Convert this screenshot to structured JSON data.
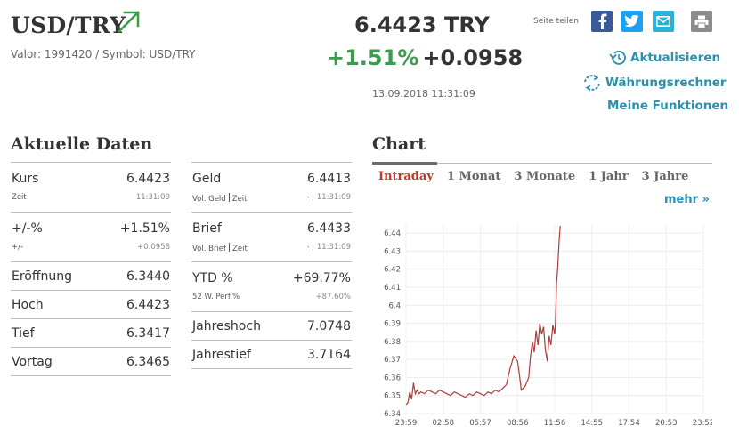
{
  "header": {
    "symbol": "USD/TRY",
    "meta": "Valor: 1991420 / Symbol: USD/TRY",
    "price": "6.4423 TRY",
    "change_pct": "+1.51%",
    "change_abs": "+0.0958",
    "timestamp": "13.09.2018 11:31:09",
    "trend_icon": "arrow-up-right-icon",
    "accent_up": "#3c9c4e",
    "link_color": "#2b8fae"
  },
  "share": {
    "label": "Seite teilen",
    "buttons": [
      "facebook-icon",
      "twitter-icon",
      "mail-icon",
      "print-icon"
    ]
  },
  "links": {
    "refresh": "Aktualisieren",
    "converter": "Währungsrechner",
    "functions": "Meine Funktionen"
  },
  "data_section": {
    "title": "Aktuelle Daten",
    "left": {
      "kurs": {
        "label": "Kurs",
        "value": "6.4423",
        "sub_label": "Zeit",
        "sub_value": "11:31:09"
      },
      "change": {
        "label": "+/-%",
        "value": "+1.51%",
        "sub_label": "+/-",
        "sub_value": "+0.0958"
      },
      "eroeffnung": {
        "label": "Eröffnung",
        "value": "6.3440"
      },
      "hoch": {
        "label": "Hoch",
        "value": "6.4423"
      },
      "tief": {
        "label": "Tief",
        "value": "6.3417"
      },
      "vortag": {
        "label": "Vortag",
        "value": "6.3465"
      }
    },
    "right": {
      "geld": {
        "label": "Geld",
        "value": "6.4413",
        "sub_label_a": "Vol. Geld",
        "sub_label_b": "Zeit",
        "sub_value": "- | 11:31:09"
      },
      "brief": {
        "label": "Brief",
        "value": "6.4433",
        "sub_label_a": "Vol. Brief",
        "sub_label_b": "Zeit",
        "sub_value": "- | 11:31:09"
      },
      "ytd": {
        "label": "YTD %",
        "value": "+69.77%",
        "sub_label": "52 W. Perf.%",
        "sub_value": "+87.60%"
      },
      "jahreshoch": {
        "label": "Jahreshoch",
        "value": "7.0748"
      },
      "jahrestief": {
        "label": "Jahrestief",
        "value": "3.7164"
      }
    }
  },
  "chart_section": {
    "title": "Chart",
    "tabs": [
      "Intraday",
      "1 Monat",
      "3 Monate",
      "1 Jahr",
      "3 Jahre"
    ],
    "active_tab": "Intraday",
    "more": "mehr »"
  },
  "chart_data": {
    "type": "line",
    "color": "#b03a3a",
    "x_ticks": [
      "23:59",
      "02:58",
      "05:57",
      "08:56",
      "11:56",
      "14:55",
      "17:54",
      "20:53",
      "23:52"
    ],
    "y_ticks": [
      "6.34",
      "6.35",
      "6.36",
      "6.37",
      "6.38",
      "6.39",
      "6.4",
      "6.41",
      "6.42",
      "6.43",
      "6.44"
    ],
    "ylim": [
      6.34,
      6.445
    ],
    "xlim": [
      0,
      8
    ],
    "grid": true,
    "x": [
      0,
      0.05,
      0.1,
      0.15,
      0.2,
      0.25,
      0.3,
      0.35,
      0.4,
      0.5,
      0.6,
      0.7,
      0.8,
      0.9,
      1.0,
      1.1,
      1.2,
      1.3,
      1.4,
      1.5,
      1.6,
      1.7,
      1.8,
      1.9,
      2.0,
      2.1,
      2.2,
      2.3,
      2.4,
      2.5,
      2.6,
      2.7,
      2.8,
      2.9,
      3.0,
      3.05,
      3.1,
      3.2,
      3.3,
      3.35,
      3.4,
      3.45,
      3.5,
      3.55,
      3.6,
      3.65,
      3.7,
      3.75,
      3.8,
      3.85,
      3.9,
      3.95,
      4.0,
      4.02,
      4.05,
      4.08,
      4.12,
      4.15
    ],
    "values": [
      6.345,
      6.346,
      6.352,
      6.348,
      6.357,
      6.351,
      6.353,
      6.351,
      6.352,
      6.351,
      6.353,
      6.352,
      6.351,
      6.353,
      6.352,
      6.351,
      6.35,
      6.352,
      6.351,
      6.35,
      6.349,
      6.351,
      6.35,
      6.352,
      6.351,
      6.35,
      6.352,
      6.351,
      6.353,
      6.352,
      6.354,
      6.356,
      6.365,
      6.372,
      6.369,
      6.362,
      6.353,
      6.355,
      6.36,
      6.372,
      6.38,
      6.374,
      6.386,
      6.378,
      6.39,
      6.384,
      6.388,
      6.375,
      6.369,
      6.383,
      6.378,
      6.389,
      6.384,
      6.39,
      6.412,
      6.42,
      6.436,
      6.444
    ]
  }
}
